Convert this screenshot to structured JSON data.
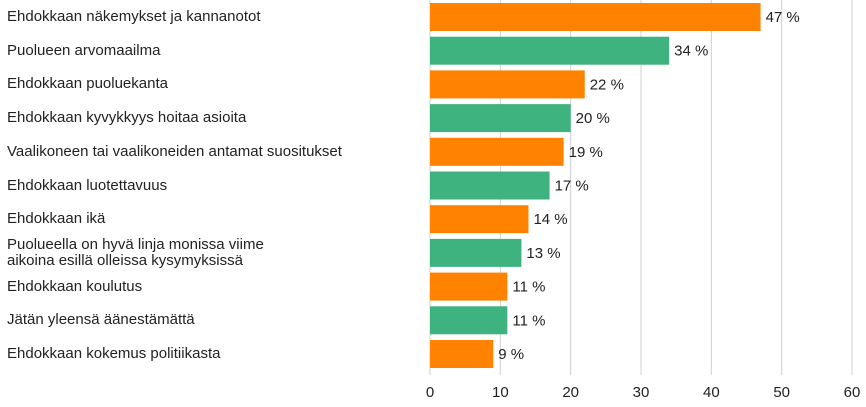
{
  "chart_data": {
    "type": "barh",
    "categories": [
      "Ehdokkaan näkemykset ja kannanotot",
      "Puolueen arvomaailma",
      "Ehdokkaan puoluekanta",
      "Ehdokkaan kyvykkyys hoitaa asioita",
      "Vaalikoneen tai vaalikoneiden antamat suositukset",
      "Ehdokkaan luotettavuus",
      "Ehdokkaan ikä",
      "Puolueella on hyvä linja monissa viime\naikoina esillä olleissa kysymyksissä",
      "Ehdokkaan koulutus",
      "Jätän yleensä äänestämättä",
      "Ehdokkaan kokemus politiikasta"
    ],
    "values": [
      47,
      34,
      22,
      20,
      19,
      17,
      14,
      13,
      11,
      11,
      9
    ],
    "value_labels": [
      "47 %",
      "34 %",
      "22 %",
      "20 %",
      "19 %",
      "17 %",
      "14 %",
      "13 %",
      "11 %",
      "11 %",
      "9 %"
    ],
    "colors": [
      "#ff8200",
      "#3fb37f",
      "#ff8200",
      "#3fb37f",
      "#ff8200",
      "#3fb37f",
      "#ff8200",
      "#3fb37f",
      "#ff8200",
      "#3fb37f",
      "#ff8200"
    ],
    "xlim": [
      0,
      60
    ],
    "xticks": [
      0,
      10,
      20,
      30,
      40,
      50,
      60
    ],
    "grid": true
  }
}
